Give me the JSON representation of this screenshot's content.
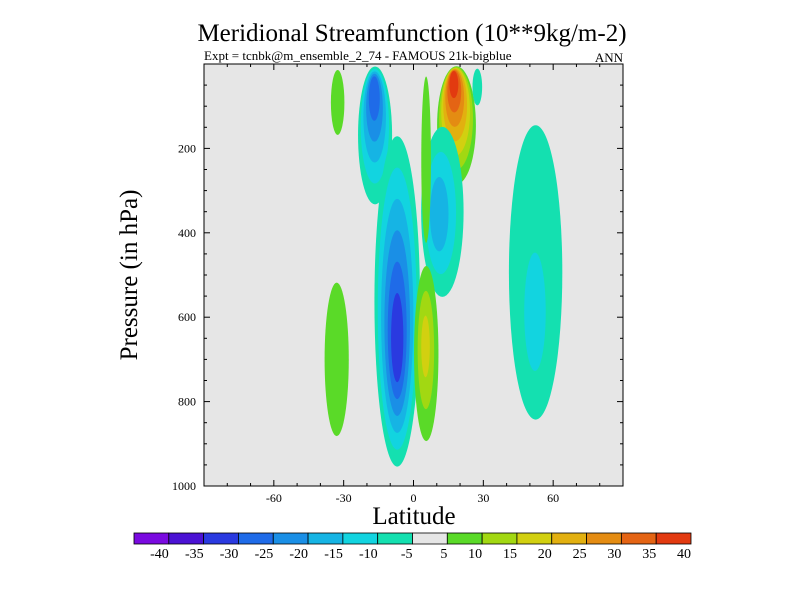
{
  "chart_data": {
    "type": "heatmap",
    "title": "Meridional Streamfunction (10**9kg/m-2)",
    "subtitle_left": "Expt = tcnbk@m_ensemble_2_74 - FAMOUS 21k-bigblue",
    "subtitle_right": "ANN",
    "xlabel": "Latitude",
    "ylabel": "Pressure (in hPa)",
    "xlim": [
      -90,
      90
    ],
    "ylim": [
      1000,
      0
    ],
    "x_ticks": [
      -60,
      -30,
      0,
      30,
      60
    ],
    "x_tick_labels": [
      "-60",
      "-30",
      "0",
      "30",
      "60"
    ],
    "y_ticks": [
      200,
      400,
      600,
      800,
      1000
    ],
    "y_tick_labels": [
      "200",
      "400",
      "600",
      "800",
      "1000"
    ],
    "background_color": "#e6e6e6",
    "colorbar": {
      "levels": [
        -40,
        -35,
        -30,
        -25,
        -20,
        -15,
        -10,
        -5,
        5,
        10,
        15,
        20,
        25,
        30,
        35,
        40
      ],
      "labels": [
        "-40",
        "-35",
        "-30",
        "-25",
        "-20",
        "-15",
        "-10",
        "-5",
        "5",
        "10",
        "15",
        "20",
        "25",
        "30",
        "35",
        "40"
      ],
      "colors": [
        "#7a0ae0",
        "#4b12d4",
        "#2a3ae0",
        "#1f6be8",
        "#1a8fe6",
        "#16b4e4",
        "#12d4e0",
        "#14e0b0",
        "#e6e6e6",
        "#5ada28",
        "#a2d812",
        "#d2d010",
        "#e2b010",
        "#e48c12",
        "#e46414",
        "#e23a10"
      ]
    },
    "features": [
      {
        "name": "nh-upper-positive-cell",
        "sign": "positive",
        "lat": [
          10,
          27
        ],
        "p": [
          5,
          290
        ],
        "peak_lat": 17,
        "peak_p": 20,
        "peak_value": 38
      },
      {
        "name": "sh-upper-negative-cell",
        "sign": "negative",
        "lat": [
          -24,
          -9
        ],
        "p": [
          5,
          340
        ],
        "peak_lat": -17,
        "peak_p": 40,
        "peak_value": -30
      },
      {
        "name": "sh-lower-negative-cell",
        "sign": "negative",
        "lat": [
          -17,
          3
        ],
        "p": [
          160,
          960
        ],
        "peak_lat": -7,
        "peak_p": 680,
        "peak_value": -34
      },
      {
        "name": "nh-mid-negative-cell",
        "sign": "negative",
        "lat": [
          3,
          22
        ],
        "p": [
          140,
          560
        ],
        "peak_lat": 10,
        "peak_p": 360,
        "peak_value": -20
      },
      {
        "name": "nh-midlat-negative-cell",
        "sign": "negative",
        "lat": [
          40,
          65
        ],
        "p": [
          100,
          860
        ],
        "peak_lat": 52,
        "peak_p": 650,
        "peak_value": -12
      },
      {
        "name": "sh-lower-positive-cell",
        "sign": "positive",
        "lat": [
          -39,
          -27
        ],
        "p": [
          490,
          910
        ],
        "peak_lat": -33,
        "peak_p": 700,
        "peak_value": 9
      },
      {
        "name": "sh-upper-positive-strip",
        "sign": "positive",
        "lat": [
          -36,
          -29
        ],
        "p": [
          5,
          190
        ],
        "peak_lat": -33,
        "peak_p": 60,
        "peak_value": 8
      },
      {
        "name": "equatorial-positive-strip",
        "sign": "positive",
        "lat": [
          3,
          8
        ],
        "p": [
          5,
          480
        ],
        "peak_lat": 5,
        "peak_p": 150,
        "peak_value": 8
      },
      {
        "name": "equatorial-lower-positive-cell",
        "sign": "positive",
        "lat": [
          0,
          11
        ],
        "p": [
          470,
          905
        ],
        "peak_lat": 5,
        "peak_p": 660,
        "peak_value": 18
      },
      {
        "name": "nh-upper-negative-strip",
        "sign": "negative",
        "lat": [
          25,
          30
        ],
        "p": [
          5,
          110
        ],
        "peak_lat": 27,
        "peak_p": 40,
        "peak_value": -8
      }
    ]
  }
}
